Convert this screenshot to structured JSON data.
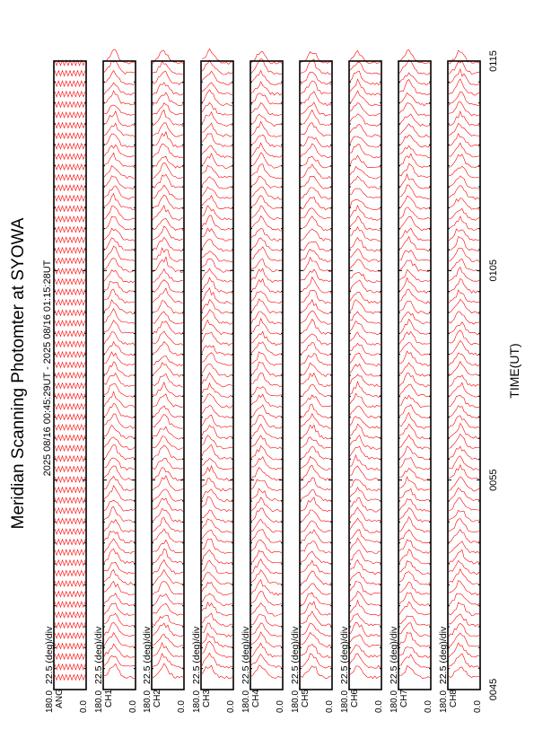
{
  "title": "Meridian Scanning Photomter at SYOWA",
  "period": "2025 08/16 00:45:29UT - 2025 08/16 01:15:28UT",
  "xlabel": "TIME(UT)",
  "scale_label": "22.5 (deg)/div",
  "colors": {
    "trace": "#ff0000",
    "frame": "#000000",
    "background": "#ffffff"
  },
  "chart_data": {
    "type": "line",
    "orientation": "rotated-90-ccw",
    "xlabel": "TIME(UT)",
    "x_ticks": [
      "0045",
      "0055",
      "0105",
      "0115"
    ],
    "x_range_ut": [
      "00:45",
      "01:15"
    ],
    "panel_y_range": [
      0.0,
      180.0
    ],
    "panel_y_tick_labels": [
      "180.0",
      "0.0"
    ],
    "panels": [
      {
        "label": "ANG",
        "scale": "22.5 (deg)/div"
      },
      {
        "label": "CH1",
        "scale": "22.5 (deg)/div"
      },
      {
        "label": "CH2",
        "scale": "22.5 (deg)/div"
      },
      {
        "label": "CH3",
        "scale": "22.5 (deg)/div"
      },
      {
        "label": "CH4",
        "scale": "22.5 (deg)/div"
      },
      {
        "label": "CH5",
        "scale": "22.5 (deg)/div"
      },
      {
        "label": "CH6",
        "scale": "22.5 (deg)/div"
      },
      {
        "label": "CH7",
        "scale": "22.5 (deg)/div"
      },
      {
        "label": "CH8",
        "scale": "22.5 (deg)/div"
      }
    ]
  }
}
